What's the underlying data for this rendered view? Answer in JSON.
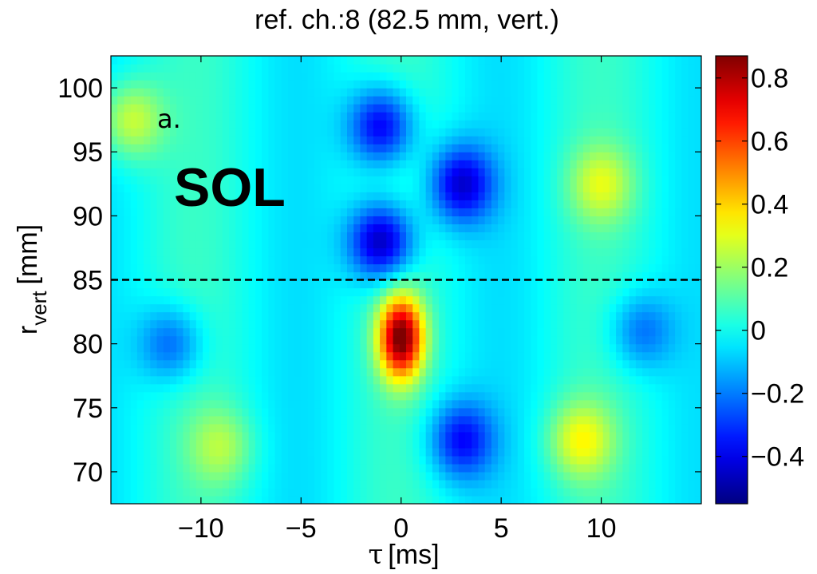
{
  "chart_data": {
    "type": "heatmap",
    "title": "ref. ch.:8 (82.5 mm, vert.)",
    "xlabel_symbol": "τ",
    "xlabel_unit": "[ms]",
    "ylabel_main": "r",
    "ylabel_sub": "vert",
    "ylabel_unit": "[mm]",
    "xlim": [
      -14.5,
      15
    ],
    "ylim": [
      67.5,
      102.5
    ],
    "x_ticks": [
      -10,
      -5,
      0,
      5,
      10
    ],
    "x_tick_labels": [
      "−10",
      "−5",
      "0",
      "5",
      "10"
    ],
    "y_ticks": [
      70,
      75,
      80,
      85,
      90,
      95,
      100
    ],
    "y_tick_labels": [
      "70",
      "75",
      "80",
      "85",
      "90",
      "95",
      "100"
    ],
    "colorbar": {
      "colormap": "jet",
      "clim": [
        -0.55,
        0.87
      ],
      "ticks": [
        -0.4,
        -0.2,
        0,
        0.2,
        0.4,
        0.6,
        0.8
      ],
      "tick_labels": [
        "−0.4",
        "−0.2",
        "0",
        "0.2",
        "0.4",
        "0.6",
        "0.8"
      ]
    },
    "reference_line": {
      "y": 85,
      "style": "dashed",
      "color": "#000000"
    },
    "annotations": {
      "panel": "a.",
      "region": "SOL"
    },
    "features": [
      {
        "x": 0,
        "y": 80.5,
        "value": 0.86
      },
      {
        "x": -1,
        "y": 97,
        "value": -0.42
      },
      {
        "x": -1,
        "y": 88,
        "value": -0.5
      },
      {
        "x": 3,
        "y": 92.5,
        "value": -0.42
      },
      {
        "x": 3,
        "y": 72.5,
        "value": -0.35
      },
      {
        "x": -11.5,
        "y": 80,
        "value": -0.25
      },
      {
        "x": 12,
        "y": 81,
        "value": -0.22
      },
      {
        "x": -13.5,
        "y": 97.5,
        "value": 0.28
      },
      {
        "x": 10,
        "y": 92.5,
        "value": 0.25
      },
      {
        "x": 9,
        "y": 72.5,
        "value": 0.3
      },
      {
        "x": -9,
        "y": 72,
        "value": 0.2
      }
    ]
  }
}
